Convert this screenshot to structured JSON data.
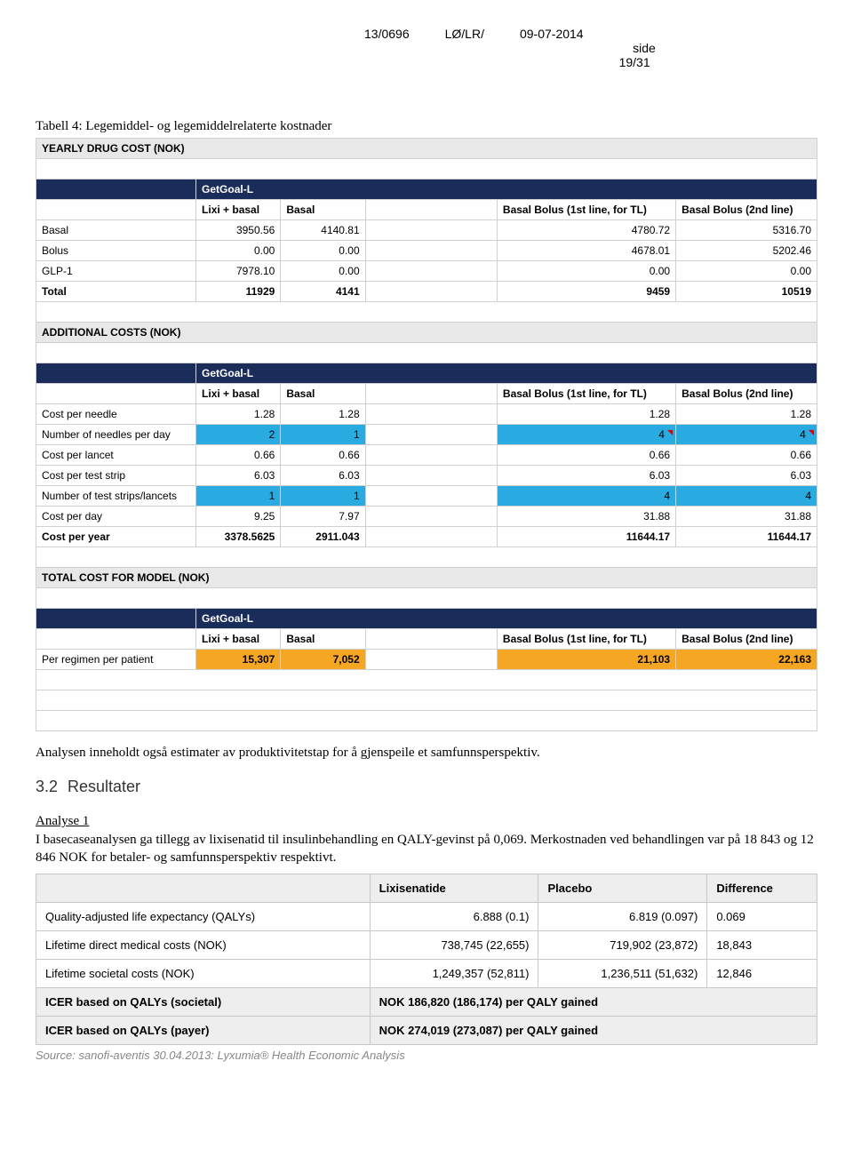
{
  "header": {
    "doc_id": "13/0696",
    "ref": "LØ/LR/",
    "date": "09-07-2014",
    "side_label": "side",
    "page": "19/31"
  },
  "caption": "Tabell 4: Legemiddel- og legemiddelrelaterte kostnader",
  "sections": {
    "yearly": {
      "title": "YEARLY DRUG COST  (NOK)"
    },
    "additional": {
      "title": "ADDITIONAL COSTS  (NOK)"
    },
    "total": {
      "title": "TOTAL COST FOR MODEL (NOK)"
    }
  },
  "navy": "GetGoal-L",
  "cols": {
    "c1": "Lixi + basal",
    "c2": "Basal",
    "c3": "Basal Bolus (1st line, for TL)",
    "c4": "Basal Bolus (2nd line)"
  },
  "yearly_rows": [
    {
      "label": "Basal",
      "v": [
        "3950.56",
        "4140.81",
        "4780.72",
        "5316.70"
      ]
    },
    {
      "label": "Bolus",
      "v": [
        "0.00",
        "0.00",
        "4678.01",
        "5202.46"
      ]
    },
    {
      "label": "GLP-1",
      "v": [
        "7978.10",
        "0.00",
        "0.00",
        "0.00"
      ]
    },
    {
      "label": "Total",
      "v": [
        "11929",
        "4141",
        "9459",
        "10519"
      ],
      "bold": true
    }
  ],
  "additional_rows": [
    {
      "label": "Cost per needle",
      "v": [
        "1.28",
        "1.28",
        "1.28",
        "1.28"
      ]
    },
    {
      "label": "Number of needles per day",
      "v": [
        "2",
        "1",
        "4",
        "4"
      ],
      "hl": true,
      "tick34": true
    },
    {
      "label": "Cost per lancet",
      "v": [
        "0.66",
        "0.66",
        "0.66",
        "0.66"
      ]
    },
    {
      "label": "Cost per test strip",
      "v": [
        "6.03",
        "6.03",
        "6.03",
        "6.03"
      ]
    },
    {
      "label": "Number of test strips/lancets",
      "v": [
        "1",
        "1",
        "4",
        "4"
      ],
      "hl": true
    },
    {
      "label": "Cost per day",
      "v": [
        "9.25",
        "7.97",
        "31.88",
        "31.88"
      ]
    },
    {
      "label": "Cost per year",
      "v": [
        "3378.5625",
        "2911.043",
        "11644.17",
        "11644.17"
      ],
      "bold": true
    }
  ],
  "total_row": {
    "label": "Per regimen per patient",
    "v": [
      "15,307",
      "7,052",
      "21,103",
      "22,163"
    ]
  },
  "para1": "Analysen inneholdt også estimater av produktivitetstap for å gjenspeile et samfunnsperspektiv.",
  "h32": {
    "num": "3.2",
    "txt": "Resultater"
  },
  "analyse_title": "Analyse 1",
  "para2": "I basecaseanalysen ga tillegg av lixisenatid til insulinbehandling en QALY-gevinst på 0,069. Merkostnaden ved behandlingen var på 18 843 og 12 846 NOK for betaler- og samfunnsperspektiv respektivt.",
  "results": {
    "head": [
      "",
      "Lixisenatide",
      "Placebo",
      "Difference"
    ],
    "rows": [
      {
        "label": "Quality-adjusted life expectancy (QALYs)",
        "v": [
          "6.888 (0.1)",
          "6.819 (0.097)",
          "0.069"
        ],
        "rnum": [
          true,
          true,
          false
        ]
      },
      {
        "label": "Lifetime direct medical costs (NOK)",
        "v": [
          "738,745 (22,655)",
          "719,902 (23,872)",
          "18,843"
        ],
        "rnum": [
          true,
          true,
          false
        ]
      },
      {
        "label": "Lifetime societal costs (NOK)",
        "v": [
          "1,249,357 (52,811)",
          "1,236,511 (51,632)",
          "12,846"
        ],
        "rnum": [
          true,
          true,
          false
        ]
      }
    ],
    "icer1": {
      "label": "ICER based on QALYs (societal)",
      "val": "NOK 186,820 (186,174) per QALY gained"
    },
    "icer2": {
      "label": "ICER based on QALYs (payer)",
      "val": "NOK 274,019 (273,087) per QALY gained"
    }
  },
  "source": "Source:  sanofi-aventis 30.04.2013: Lyxumia® Health Economic Analysis"
}
